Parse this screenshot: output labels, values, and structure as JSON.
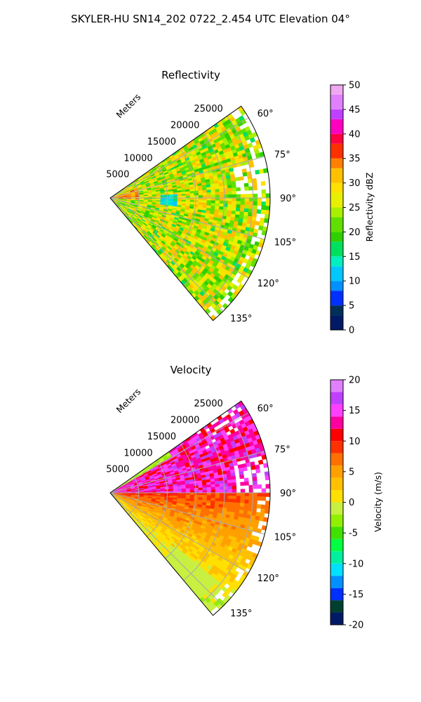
{
  "figure_title": "SKYLER-HU  SN14_202  0722_2.454 UTC Elevation 04°",
  "colors": {
    "sector_edge": "#000000",
    "grid": "#aaaaaa",
    "reflectivity_base": "#d4ec30",
    "velocity_base_low": "#ffd21a",
    "velocity_base_high": "#ff1ca8"
  },
  "chart_data": [
    {
      "type": "heatmap",
      "projection": "polar-sector",
      "title": "Reflectivity",
      "radial_label": "Meters",
      "radial_ticks": [
        5000,
        10000,
        15000,
        20000,
        25000
      ],
      "r_max_m": 28000,
      "azimuth_range_deg": [
        55,
        140
      ],
      "angle_ticks": [
        60,
        75,
        90,
        105,
        120,
        135
      ],
      "angle_tick_labels": [
        "60°",
        "75°",
        "90°",
        "105°",
        "120°",
        "135°"
      ],
      "grid": true,
      "colorbar": {
        "label": "Reflectivity dBZ",
        "range": [
          0,
          50
        ],
        "ticks": [
          0,
          5,
          10,
          15,
          20,
          25,
          30,
          35,
          40,
          45,
          50
        ],
        "stops": [
          [
            0,
            "#001a66"
          ],
          [
            3,
            "#00305a"
          ],
          [
            5,
            "#0030ff"
          ],
          [
            8,
            "#0090ff"
          ],
          [
            10,
            "#00c8ff"
          ],
          [
            13,
            "#00f0c0"
          ],
          [
            15,
            "#00e060"
          ],
          [
            18,
            "#30d000"
          ],
          [
            20,
            "#60e000"
          ],
          [
            23,
            "#a8f000"
          ],
          [
            25,
            "#e8f000"
          ],
          [
            28,
            "#ffe000"
          ],
          [
            30,
            "#ffc000"
          ],
          [
            33,
            "#ff8000"
          ],
          [
            35,
            "#ff3000"
          ],
          [
            38,
            "#ff0040"
          ],
          [
            40,
            "#ff00c0"
          ],
          [
            43,
            "#c040ff"
          ],
          [
            45,
            "#e080ff"
          ],
          [
            48,
            "#f0a8f0"
          ],
          [
            50,
            "#ffe0ff"
          ]
        ]
      },
      "field_summary": {
        "dominant_dbz_range": [
          18,
          32
        ],
        "low_core_dbz": 12,
        "high_near_radar_dbz": 36,
        "missing_data_regions": "outer ring near 75°–90° and edges of sector"
      }
    },
    {
      "type": "heatmap",
      "projection": "polar-sector",
      "title": "Velocity",
      "radial_label": "Meters",
      "radial_ticks": [
        5000,
        10000,
        15000,
        20000,
        25000
      ],
      "r_max_m": 28000,
      "azimuth_range_deg": [
        55,
        140
      ],
      "angle_ticks": [
        60,
        75,
        90,
        105,
        120,
        135
      ],
      "angle_tick_labels": [
        "60°",
        "75°",
        "90°",
        "105°",
        "120°",
        "135°"
      ],
      "grid": true,
      "colorbar": {
        "label": "Velocity (m/s)",
        "range": [
          -20,
          20
        ],
        "ticks": [
          -20,
          -15,
          -10,
          -5,
          0,
          5,
          10,
          15,
          20
        ],
        "stops": [
          [
            -20,
            "#001a66"
          ],
          [
            -18,
            "#004030"
          ],
          [
            -16,
            "#0030ff"
          ],
          [
            -14,
            "#0090ff"
          ],
          [
            -12,
            "#00e0ff"
          ],
          [
            -10,
            "#00f0a0"
          ],
          [
            -8,
            "#00ff40"
          ],
          [
            -6,
            "#40e000"
          ],
          [
            -4,
            "#90f000"
          ],
          [
            -2,
            "#c8f040"
          ],
          [
            0,
            "#ffe000"
          ],
          [
            2,
            "#ffc000"
          ],
          [
            4,
            "#ffa000"
          ],
          [
            6,
            "#ff7000"
          ],
          [
            8,
            "#ff3000"
          ],
          [
            10,
            "#ff0000"
          ],
          [
            12,
            "#ff00a0"
          ],
          [
            14,
            "#ff40ff"
          ],
          [
            16,
            "#c040ff"
          ],
          [
            18,
            "#e080ff"
          ],
          [
            20,
            "#ffe0ff"
          ]
        ]
      },
      "field_summary": {
        "azimuth_below_90_ms": [
          10,
          17
        ],
        "azimuth_above_90_near_ms": [
          8,
          11
        ],
        "azimuth_above_90_far_ms": [
          1,
          5
        ],
        "low_azimuth_edge_ms": -2
      }
    }
  ]
}
